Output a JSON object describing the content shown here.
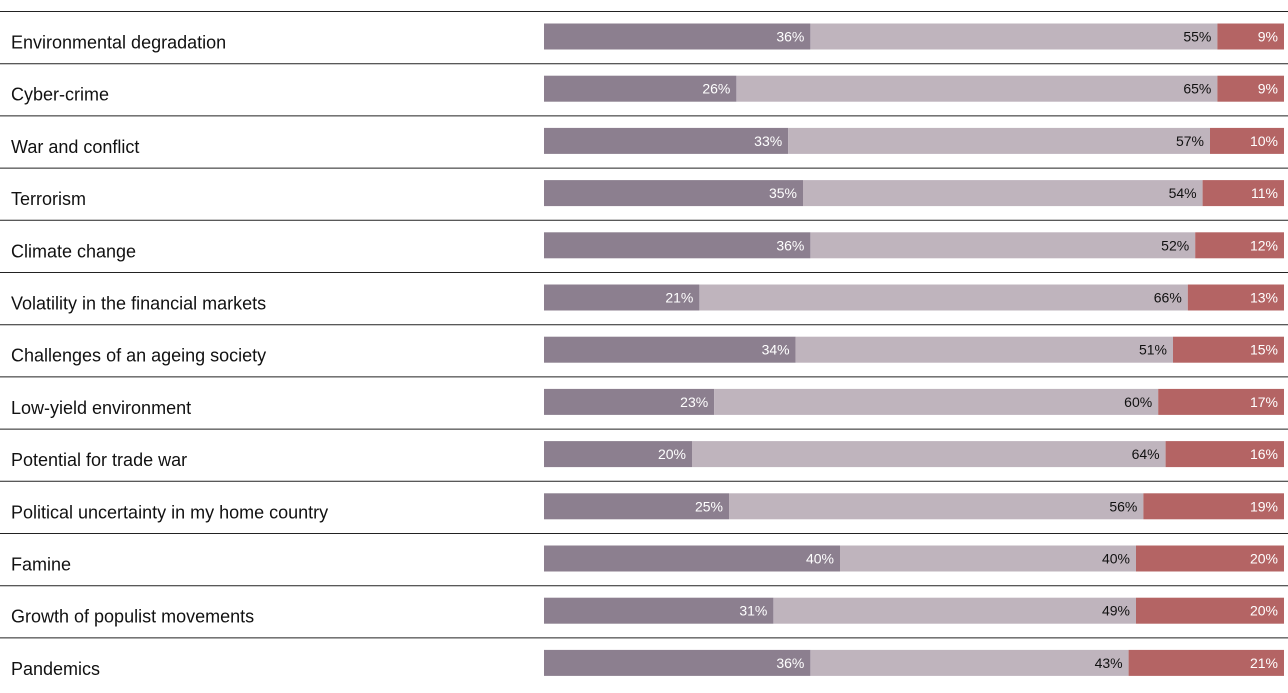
{
  "chart_data": {
    "type": "bar",
    "stacked": true,
    "orientation": "horizontal",
    "title": "",
    "xlabel": "",
    "ylabel": "",
    "legend": "none",
    "grid": false,
    "xlim": [
      0,
      100
    ],
    "categories": [
      "Environmental degradation",
      "Cyber-crime",
      "War and conflict",
      "Terrorism",
      "Climate change",
      "Volatility in the financial markets",
      "Challenges of an ageing society",
      "Low-yield environment",
      "Potential for trade war",
      "Political uncertainty in my home country",
      "Famine",
      "Growth of populist movements",
      "Pandemics"
    ],
    "series": [
      {
        "color": "#8c7f8f",
        "label_color": "#ffffff",
        "values": [
          36,
          26,
          33,
          35,
          36,
          21,
          34,
          23,
          20,
          25,
          40,
          31,
          36
        ],
        "labels": [
          "36%",
          "26%",
          "33%",
          "35%",
          "36%",
          "21%",
          "34%",
          "23%",
          "20%",
          "25%",
          "40%",
          "31%",
          "36%"
        ]
      },
      {
        "color": "#bfb4bd",
        "label_color": "#111111",
        "values": [
          55,
          65,
          57,
          54,
          52,
          66,
          51,
          60,
          64,
          56,
          40,
          49,
          43
        ],
        "labels": [
          "55%",
          "65%",
          "57%",
          "54%",
          "52%",
          "66%",
          "51%",
          "60%",
          "64%",
          "56%",
          "40%",
          "49%",
          "43%"
        ]
      },
      {
        "color": "#b46464",
        "label_color": "#ffffff",
        "values": [
          9,
          9,
          10,
          11,
          12,
          13,
          15,
          17,
          16,
          19,
          20,
          20,
          21
        ],
        "labels": [
          "9%",
          "9%",
          "10%",
          "11%",
          "12%",
          "13%",
          "15%",
          "17%",
          "16%",
          "19%",
          "20%",
          "20%",
          "21%"
        ]
      }
    ]
  }
}
